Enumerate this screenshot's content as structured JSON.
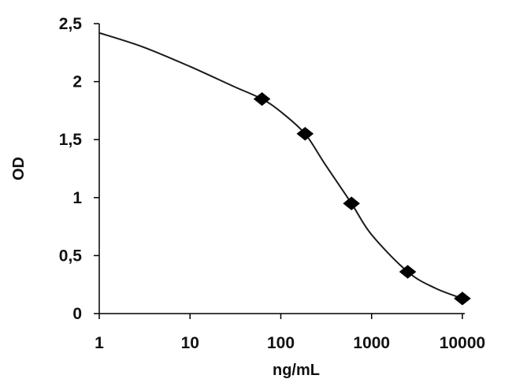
{
  "chart_data": {
    "type": "scatter",
    "title": "",
    "xlabel": "ng/mL",
    "ylabel": "OD",
    "xscale": "log",
    "xlim": [
      1,
      10000
    ],
    "ylim": [
      0,
      2.5
    ],
    "x_ticks": [
      1,
      10,
      100,
      1000,
      10000
    ],
    "x_tick_labels": [
      "1",
      "10",
      "100",
      "1000",
      "10000"
    ],
    "y_ticks": [
      0,
      0.5,
      1,
      1.5,
      2,
      2.5
    ],
    "y_tick_labels": [
      "0",
      "0,5",
      "1",
      "1,5",
      "2",
      "2,5"
    ],
    "grid": false,
    "legend": "none",
    "series": [
      {
        "marker": "diamond",
        "color": "#000000",
        "x": [
          62,
          185,
          600,
          2500,
          10000
        ],
        "y": [
          1.85,
          1.55,
          0.95,
          0.36,
          0.13
        ]
      }
    ],
    "fit_curve": {
      "style": "smooth line",
      "color": "#1a1a1a",
      "x": [
        1,
        3,
        10,
        30,
        62,
        100,
        185,
        300,
        600,
        1000,
        2500,
        5000,
        10000
      ],
      "y": [
        2.42,
        2.3,
        2.13,
        1.96,
        1.85,
        1.74,
        1.55,
        1.3,
        0.95,
        0.68,
        0.36,
        0.22,
        0.13
      ]
    }
  }
}
